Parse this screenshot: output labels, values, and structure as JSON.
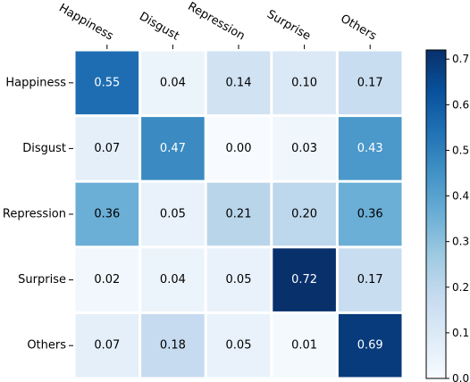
{
  "chart_data": {
    "type": "heatmap",
    "title": "",
    "xlabel": "",
    "ylabel": "",
    "x_categories": [
      "Happiness",
      "Disgust",
      "Repression",
      "Surprise",
      "Others"
    ],
    "y_categories": [
      "Happiness",
      "Disgust",
      "Repression",
      "Surprise",
      "Others"
    ],
    "values": [
      [
        0.55,
        0.04,
        0.14,
        0.1,
        0.17
      ],
      [
        0.07,
        0.47,
        0.0,
        0.03,
        0.43
      ],
      [
        0.36,
        0.05,
        0.21,
        0.2,
        0.36
      ],
      [
        0.02,
        0.04,
        0.05,
        0.72,
        0.17
      ],
      [
        0.07,
        0.18,
        0.05,
        0.01,
        0.69
      ]
    ],
    "value_labels": [
      [
        "0.55",
        "0.04",
        "0.14",
        "0.10",
        "0.17"
      ],
      [
        "0.07",
        "0.47",
        "0.00",
        "0.03",
        "0.43"
      ],
      [
        "0.36",
        "0.05",
        "0.21",
        "0.20",
        "0.36"
      ],
      [
        "0.02",
        "0.04",
        "0.05",
        "0.72",
        "0.17"
      ],
      [
        "0.07",
        "0.18",
        "0.05",
        "0.01",
        "0.69"
      ]
    ],
    "colormap": "Blues",
    "colorbar": {
      "range": [
        0.0,
        0.72
      ],
      "ticks": [
        0.0,
        0.1,
        0.2,
        0.3,
        0.4,
        0.5,
        0.6,
        0.7
      ],
      "tick_labels": [
        "0.0",
        "0.1",
        "0.2",
        "0.3",
        "0.4",
        "0.5",
        "0.6",
        "0.7"
      ]
    },
    "grid": false
  },
  "colors": {
    "gap": "#ffffff",
    "text_dark": "#000000",
    "text_light": "#ffffff"
  }
}
